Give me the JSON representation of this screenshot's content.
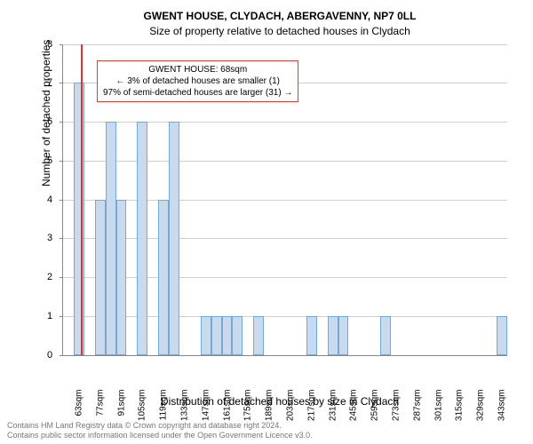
{
  "title": {
    "main": "GWENT HOUSE, CLYDACH, ABERGAVENNY, NP7 0LL",
    "sub": "Size of property relative to detached houses in Clydach"
  },
  "axes": {
    "ylabel": "Number of detached properties",
    "xlabel": "Distribution of detached houses by size in Clydach",
    "ylim": [
      0,
      8
    ],
    "ytick_step": 1,
    "grid_color": "#888888"
  },
  "chart": {
    "type": "bar",
    "bin_start": 56,
    "bin_width": 7,
    "n_bins": 42,
    "values": [
      0,
      7,
      0,
      4,
      6,
      4,
      0,
      6,
      0,
      4,
      6,
      0,
      0,
      1,
      1,
      1,
      1,
      0,
      1,
      0,
      0,
      0,
      0,
      1,
      0,
      1,
      1,
      0,
      0,
      0,
      1,
      0,
      0,
      0,
      0,
      0,
      0,
      0,
      0,
      0,
      0,
      1
    ],
    "bar_fill": "#c9daee",
    "bar_edge": "rgba(31,119,180,0.5)",
    "background": "#ffffff",
    "highlight": {
      "x_value": 68,
      "line_color": "#e03030"
    },
    "xtick_every": 2,
    "xtick_unit": "sqm"
  },
  "annotation": {
    "lines": [
      "GWENT HOUSE: 68sqm",
      "← 3% of detached houses are smaller (1)",
      "97% of semi-detached houses are larger (31) →"
    ],
    "border_color": "#d04040"
  },
  "attribution": {
    "line1": "Contains HM Land Registry data © Crown copyright and database right 2024.",
    "line2": "Contains public sector information licensed under the Open Government Licence v3.0."
  }
}
